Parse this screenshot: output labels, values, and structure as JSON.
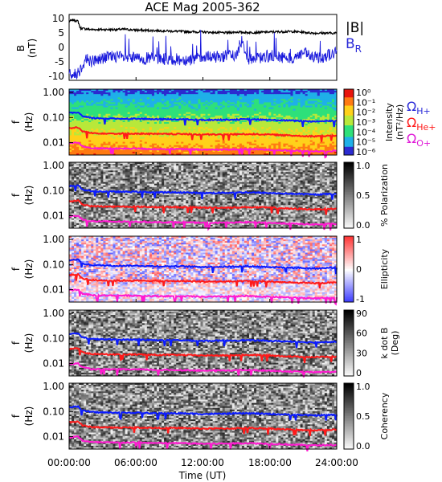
{
  "title": "ACE Mag 2005-362",
  "colors": {
    "bfield_total": "#000000",
    "bfield_radial": "#1a1adc",
    "h_plus_line": "#0b1bff",
    "he_plus_line": "#ff1a1a",
    "o_plus_line": "#ff1ad0",
    "legend_br": "#2b2bd8",
    "legend_h": "#2b2bd8",
    "legend_he": "#ff1a1a",
    "legend_o": "#e01ad8"
  },
  "legend": {
    "total_field": "|B|",
    "radial_field": "B",
    "radial_sub": "R",
    "h_label": "Ω",
    "h_sub": "H+",
    "he_label": "Ω",
    "he_sub": "He+",
    "o_label": "Ω",
    "o_sub": "O+"
  },
  "chart_data": [
    {
      "type": "line",
      "panel": "magnetic-field",
      "ylabel": "B",
      "ylabel_units": "(nT)",
      "ylim": [
        -12,
        12
      ],
      "yticks": [
        "10",
        "5",
        "0",
        "-5",
        "-10"
      ],
      "x_units": "hours",
      "series": [
        {
          "name": "|B|",
          "x": [
            0,
            0.4,
            0.8,
            1,
            2,
            3,
            4,
            5,
            6,
            8,
            10,
            12,
            14,
            15,
            16,
            18,
            20,
            22,
            24
          ],
          "y": [
            9.5,
            10,
            9.5,
            7,
            6.5,
            6.5,
            6.5,
            6.6,
            6.3,
            6.1,
            5.8,
            5.6,
            5.3,
            5.6,
            5.4,
            5.6,
            5.8,
            5.2,
            5.2
          ]
        },
        {
          "name": "B_R",
          "x": [
            0,
            0.5,
            1,
            1.5,
            2,
            3,
            4,
            5,
            6,
            8,
            10,
            12,
            14,
            15,
            15.5,
            16,
            17,
            18,
            20,
            21,
            22,
            23,
            24
          ],
          "y": [
            -9,
            -10,
            -8,
            -4,
            -5,
            -4,
            -3,
            -4,
            -4,
            -4,
            -4.5,
            -4,
            -3,
            -3,
            3,
            -4,
            -4,
            -3,
            -4,
            -2,
            -4,
            -3,
            -2
          ]
        }
      ]
    },
    {
      "type": "heatmap",
      "panel": "intensity",
      "ylabel": "f",
      "ylabel_units": "(Hz)",
      "yticks": [
        "1.00",
        "0.10",
        "0.01"
      ],
      "colorbar_label": "Intensity",
      "colorbar_units": "(nT²/Hz)",
      "colorbar_ticks": [
        "10⁰",
        "10⁻¹",
        "10⁻²",
        "10⁻³",
        "10⁻⁴",
        "10⁻⁵",
        "10⁻⁶"
      ]
    },
    {
      "type": "heatmap",
      "panel": "polarization",
      "ylabel": "f",
      "ylabel_units": "(Hz)",
      "yticks": [
        "1.00",
        "0.10",
        "0.01"
      ],
      "colorbar_label": "% Polarization",
      "colorbar_ticks": [
        "1.0",
        "0.5",
        "0.0"
      ]
    },
    {
      "type": "heatmap",
      "panel": "ellipticity",
      "ylabel": "f",
      "ylabel_units": "(Hz)",
      "yticks": [
        "1.00",
        "0.10",
        "0.01"
      ],
      "colorbar_label": "Ellipticity",
      "colorbar_ticks": [
        "1",
        "0",
        "-1"
      ]
    },
    {
      "type": "heatmap",
      "panel": "k-dot-b",
      "ylabel": "f",
      "ylabel_units": "(Hz)",
      "yticks": [
        "1.00",
        "0.10",
        "0.01"
      ],
      "colorbar_label": "k dot B",
      "colorbar_units": "(Deg)",
      "colorbar_ticks": [
        "90",
        "60",
        "30",
        "0"
      ]
    },
    {
      "type": "heatmap",
      "panel": "coherency",
      "ylabel": "f",
      "ylabel_units": "(Hz)",
      "yticks": [
        "1.00",
        "0.10",
        "0.01"
      ],
      "colorbar_label": "Coherency",
      "colorbar_ticks": [
        "1.0",
        "0.5",
        "0.0"
      ]
    },
    {
      "type": "line",
      "panel": "gyrofrequencies",
      "x_units": "hours",
      "y_units": "Hz",
      "series": [
        {
          "name": "Ω H+",
          "x": [
            0,
            0.8,
            1.2,
            2,
            4,
            6,
            8,
            10,
            12,
            14,
            16,
            18,
            20,
            22,
            24
          ],
          "y": [
            0.15,
            0.16,
            0.11,
            0.095,
            0.09,
            0.09,
            0.085,
            0.085,
            0.08,
            0.082,
            0.085,
            0.08,
            0.075,
            0.07,
            0.075
          ]
        },
        {
          "name": "Ω He+",
          "x": [
            0,
            0.8,
            1.2,
            2,
            4,
            6,
            8,
            10,
            12,
            14,
            16,
            18,
            20,
            22,
            24
          ],
          "y": [
            0.038,
            0.04,
            0.028,
            0.024,
            0.023,
            0.023,
            0.022,
            0.022,
            0.021,
            0.021,
            0.022,
            0.021,
            0.019,
            0.018,
            0.019
          ]
        },
        {
          "name": "Ω O+",
          "x": [
            0,
            0.8,
            1.2,
            2,
            4,
            6,
            8,
            10,
            12,
            14,
            16,
            18,
            20,
            22,
            24
          ],
          "y": [
            0.0095,
            0.01,
            0.007,
            0.006,
            0.0058,
            0.0058,
            0.0055,
            0.0055,
            0.0052,
            0.0053,
            0.0055,
            0.0052,
            0.0048,
            0.0045,
            0.0047
          ]
        }
      ]
    }
  ],
  "x_axis": {
    "label": "Time (UT)",
    "ticks": [
      "00:00:00",
      "06:00:00",
      "12:00:00",
      "18:00:00",
      "24:00:00"
    ],
    "range_hours": [
      0,
      24
    ]
  }
}
